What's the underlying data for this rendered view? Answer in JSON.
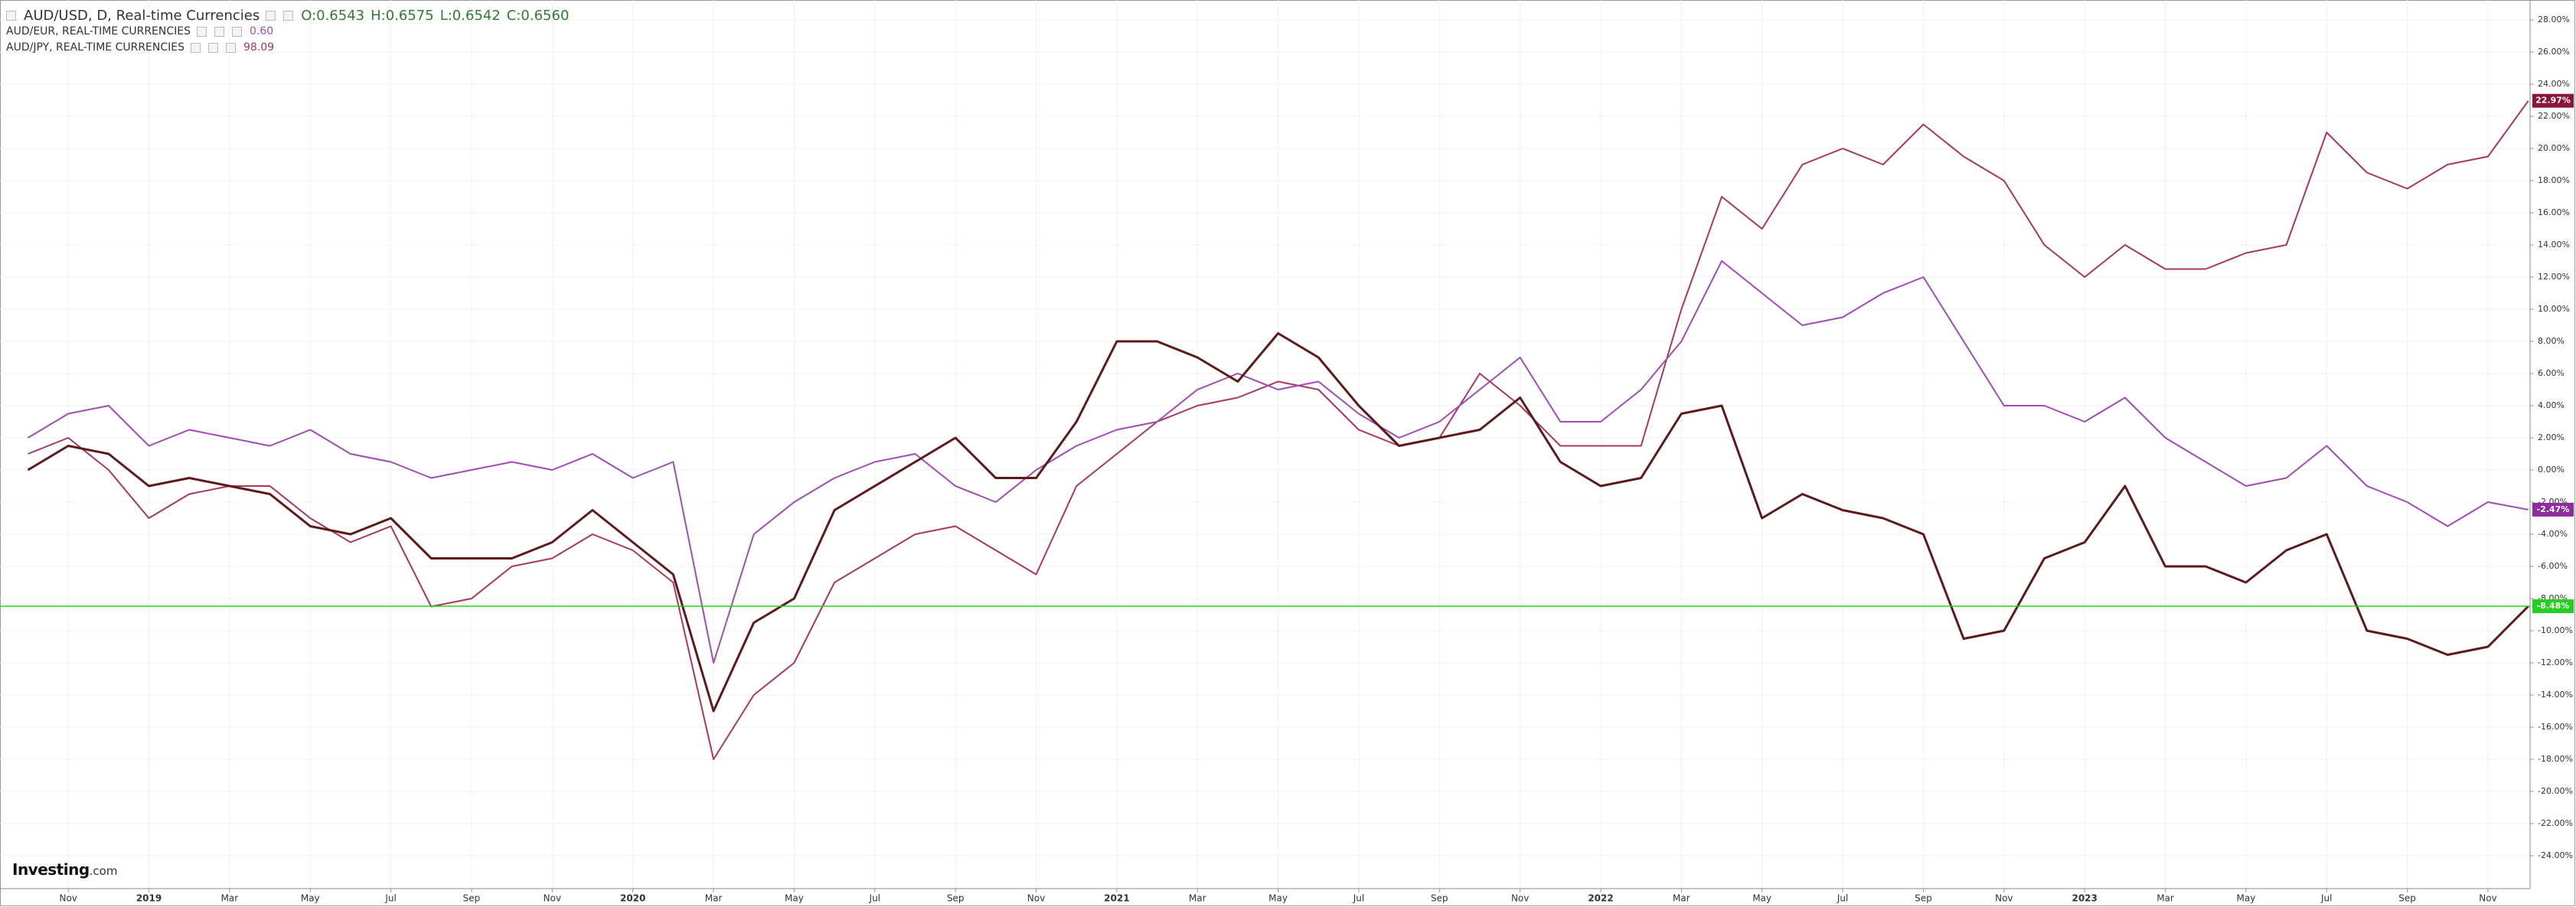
{
  "chart_data": {
    "type": "line",
    "header": "AUD/USD, D, Real-time Currencies",
    "ohlc": [
      "O:0.6543",
      "H:0.6575",
      "L:0.6542",
      "C:0.6560"
    ],
    "logo": [
      "Investing",
      ".com"
    ],
    "categories": [
      null,
      "Nov",
      null,
      "2019",
      null,
      "Mar",
      null,
      "May",
      null,
      "Jul",
      null,
      "Sep",
      null,
      "Nov",
      null,
      "2020",
      null,
      "Mar",
      null,
      "May",
      null,
      "Jul",
      null,
      "Sep",
      null,
      "Nov",
      null,
      "2021",
      null,
      "Mar",
      null,
      "May",
      null,
      "Jul",
      null,
      "Sep",
      null,
      "Nov",
      null,
      "2022",
      null,
      "Mar",
      null,
      "May",
      null,
      "Jul",
      null,
      "Sep",
      null,
      "Nov",
      null,
      "2023",
      null,
      "Mar",
      null,
      "May",
      null,
      "Jul",
      null,
      "Sep",
      null,
      "Nov",
      null
    ],
    "series": [
      {
        "name": "AUD/USD",
        "color": "#5e1a1a",
        "end_label": "-8.48%",
        "badge_color": "#22d11f",
        "values": [
          0,
          1.5,
          1,
          -1,
          -0.5,
          -1,
          -1.5,
          -3.5,
          -4,
          -3,
          -5.5,
          -5.5,
          -5.5,
          -4.5,
          -2.5,
          -4.5,
          -6.5,
          -15,
          -9.5,
          -8,
          -2.5,
          -1,
          0.5,
          2,
          -0.5,
          -0.5,
          3,
          8,
          8,
          7,
          5.5,
          8.5,
          7,
          4,
          1.5,
          2,
          2.5,
          4.5,
          0.5,
          -1,
          -0.5,
          3.5,
          4,
          -3,
          -1.5,
          -2.5,
          -3,
          -4,
          -10.5,
          -10,
          -5.5,
          -4.5,
          -1,
          -6,
          -6,
          -7,
          -5,
          -4,
          -10,
          -10.5,
          -11.5,
          -11,
          -8.48
        ]
      },
      {
        "name": "AUD/EUR, REAL-TIME CURRENCIES",
        "last": "0.60",
        "color": "#a04cb5",
        "end_label": "-2.47%",
        "badge_color": "#8e2b9e",
        "values": [
          2,
          3.5,
          4,
          1.5,
          2.5,
          2,
          1.5,
          2.5,
          1,
          0.5,
          -0.5,
          0,
          0.5,
          0,
          1,
          -0.5,
          0.5,
          -12,
          -4,
          -2,
          -0.5,
          0.5,
          1,
          -1,
          -2,
          0,
          1.5,
          2.5,
          3,
          5,
          6,
          5,
          5.5,
          3.5,
          2,
          3,
          5,
          7,
          3,
          3,
          5,
          8,
          13,
          11,
          9,
          9.5,
          11,
          12,
          8,
          4,
          4,
          3,
          4.5,
          2,
          0.5,
          -1,
          -0.5,
          1.5,
          -1,
          -2,
          -3.5,
          -2,
          -2.47
        ]
      },
      {
        "name": "AUD/JPY, REAL-TIME CURRENCIES",
        "last": "98.09",
        "color": "#a8385e",
        "end_label": "22.97%",
        "badge_color": "#8b1538",
        "values": [
          1,
          2,
          0,
          -3,
          -1.5,
          -1,
          -1,
          -3,
          -4.5,
          -3.5,
          -8.5,
          -8,
          -6,
          -5.5,
          -4,
          -5,
          -7,
          -18,
          -14,
          -12,
          -7,
          -5.5,
          -4,
          -3.5,
          -5,
          -6.5,
          -1,
          1,
          3,
          4,
          4.5,
          5.5,
          5,
          2.5,
          1.5,
          2,
          6,
          4,
          1.5,
          1.5,
          1.5,
          10,
          17,
          15,
          19,
          20,
          19,
          21.5,
          19.5,
          18,
          14,
          12,
          14,
          12.5,
          12.5,
          13.5,
          14,
          21,
          18.5,
          17.5,
          19,
          19.5,
          22.97
        ]
      }
    ],
    "ylim": [
      -26.05,
      29.24
    ],
    "yticks": [
      {
        "value": 28,
        "label": "28.00%"
      },
      {
        "value": 26,
        "label": "26.00%"
      },
      {
        "value": 24,
        "label": "24.00%"
      },
      {
        "value": 22,
        "label": "22.00%"
      },
      {
        "value": 20,
        "label": "20.00%"
      },
      {
        "value": 18,
        "label": "18.00%"
      },
      {
        "value": 16,
        "label": "16.00%"
      },
      {
        "value": 14,
        "label": "14.00%"
      },
      {
        "value": 12,
        "label": "12.00%"
      },
      {
        "value": 10,
        "label": "10.00%"
      },
      {
        "value": 8,
        "label": "8.00%"
      },
      {
        "value": 6,
        "label": "6.00%"
      },
      {
        "value": 4,
        "label": "4.00%"
      },
      {
        "value": 2,
        "label": "2.00%"
      },
      {
        "value": 0,
        "label": "0.00%"
      },
      {
        "value": -2,
        "label": "-2.00%"
      },
      {
        "value": -4,
        "label": "-4.00%"
      },
      {
        "value": -6,
        "label": "-6.00%"
      },
      {
        "value": -8,
        "label": "-8.00%"
      },
      {
        "value": -10,
        "label": "-10.00%"
      },
      {
        "value": -12,
        "label": "-12.00%"
      },
      {
        "value": -14,
        "label": "-14.00%"
      },
      {
        "value": -16,
        "label": "-16.00%"
      },
      {
        "value": -18,
        "label": "-18.00%"
      },
      {
        "value": -20,
        "label": "-20.00%"
      },
      {
        "value": -22,
        "label": "-22.00%"
      },
      {
        "value": -24,
        "label": "-24.00%"
      }
    ],
    "grid": true,
    "price_line": true
  }
}
